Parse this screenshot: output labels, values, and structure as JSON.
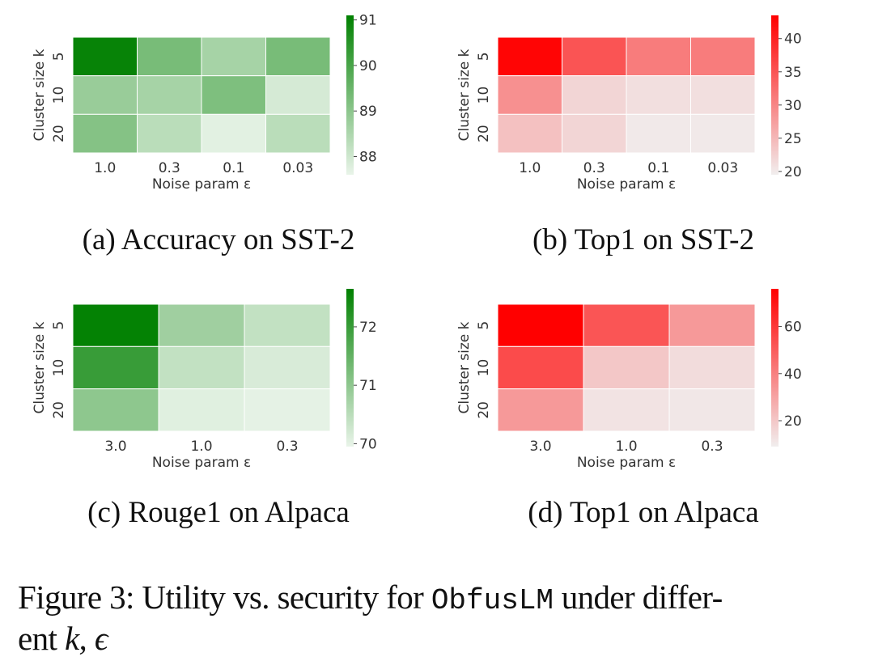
{
  "chart_data": [
    {
      "type": "heatmap",
      "id": "a",
      "caption": "(a) Accuracy on SST-2",
      "xlabel": "Noise param ε",
      "ylabel": "Cluster size k",
      "x_categories": [
        "1.0",
        "0.3",
        "0.1",
        "0.03"
      ],
      "y_categories": [
        "5",
        "10",
        "20"
      ],
      "values": [
        [
          91.0,
          89.3,
          88.6,
          89.3
        ],
        [
          88.8,
          88.6,
          89.2,
          87.9
        ],
        [
          89.1,
          88.3,
          87.7,
          88.3
        ]
      ],
      "colorbar": {
        "range": [
          87.6,
          91.1
        ],
        "ticks": [
          88,
          89,
          90,
          91
        ]
      },
      "colors": {
        "low": "#e9f4e9",
        "high": "#008000"
      }
    },
    {
      "type": "heatmap",
      "id": "b",
      "caption": "(b) Top1 on SST-2",
      "xlabel": "Noise param ε",
      "ylabel": "Cluster size k",
      "x_categories": [
        "1.0",
        "0.3",
        "0.1",
        "0.03"
      ],
      "y_categories": [
        "5",
        "10",
        "20"
      ],
      "values": [
        [
          43,
          35,
          31,
          31
        ],
        [
          29,
          22,
          21,
          21
        ],
        [
          24,
          22,
          20,
          20
        ]
      ],
      "colorbar": {
        "range": [
          19.5,
          43.5
        ],
        "ticks": [
          20,
          25,
          30,
          35,
          40
        ]
      },
      "colors": {
        "low": "#f1eeee",
        "high": "#ff0000"
      }
    },
    {
      "type": "heatmap",
      "id": "c",
      "caption": "(c) Rouge1 on Alpaca",
      "xlabel": "Noise param ε",
      "ylabel": "Cluster size k",
      "x_categories": [
        "3.0",
        "1.0",
        "0.3"
      ],
      "y_categories": [
        "5",
        "10",
        "20"
      ],
      "values": [
        [
          72.6,
          70.8,
          70.4
        ],
        [
          72.0,
          70.4,
          70.15
        ],
        [
          71.0,
          70.05,
          70.0
        ]
      ],
      "colorbar": {
        "range": [
          69.95,
          72.65
        ],
        "ticks": [
          70,
          71,
          72
        ]
      },
      "colors": {
        "low": "#e9f4e9",
        "high": "#008000"
      }
    },
    {
      "type": "heatmap",
      "id": "d",
      "caption": "(d) Top1 on Alpaca",
      "xlabel": "Noise param ε",
      "ylabel": "Cluster size k",
      "x_categories": [
        "3.0",
        "1.0",
        "0.3"
      ],
      "y_categories": [
        "5",
        "10",
        "20"
      ],
      "values": [
        [
          76,
          52,
          33
        ],
        [
          55,
          20,
          14
        ],
        [
          33,
          12,
          11
        ]
      ],
      "colorbar": {
        "range": [
          9,
          76
        ],
        "ticks": [
          20,
          40,
          60
        ]
      },
      "colors": {
        "low": "#f1eeee",
        "high": "#ff0000"
      }
    }
  ],
  "figure_caption": {
    "prefix": "Figure 3: Utility vs. security for ",
    "method": "ObfusLM",
    "suffix": " under differ-",
    "line2_text": "ent ",
    "line2_math": "k, ϵ"
  }
}
